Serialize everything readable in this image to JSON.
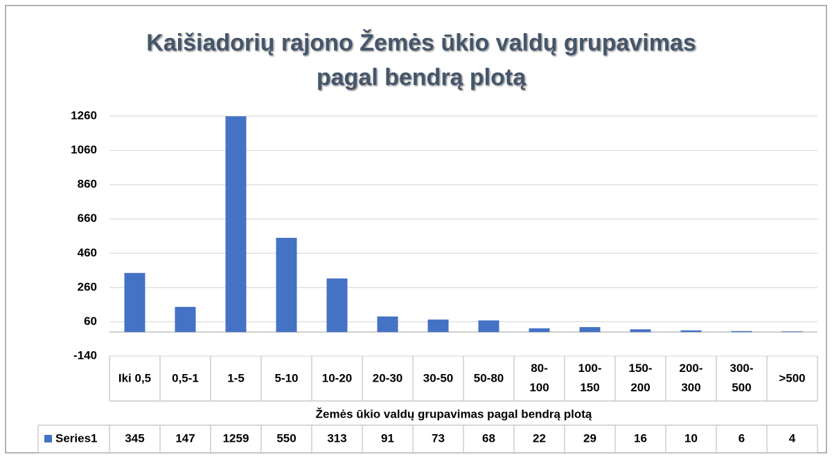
{
  "chart_data": {
    "type": "bar",
    "title": [
      "Kaišiadorių rajono Žemės ūkio valdų grupavimas",
      "pagal bendrą plotą"
    ],
    "x_label": "Žemės ūkio valdų grupavimas pagal bendrą plotą",
    "categories": [
      "Iki 0,5",
      "0,5-1",
      "1-5",
      "5-10",
      "10-20",
      "20-30",
      "30-50",
      "50-80",
      "80-100",
      "100-150",
      "150-200",
      "200-300",
      "300-500",
      ">500"
    ],
    "series": [
      {
        "name": "Series1",
        "color": "#4472c4",
        "values": [
          345,
          147,
          1259,
          550,
          313,
          91,
          73,
          68,
          22,
          29,
          16,
          10,
          6,
          4
        ]
      }
    ],
    "ylim": [
      -140,
      1260
    ],
    "yticks": [
      -140,
      60,
      260,
      460,
      660,
      860,
      1060,
      1260
    ],
    "grid": true
  }
}
